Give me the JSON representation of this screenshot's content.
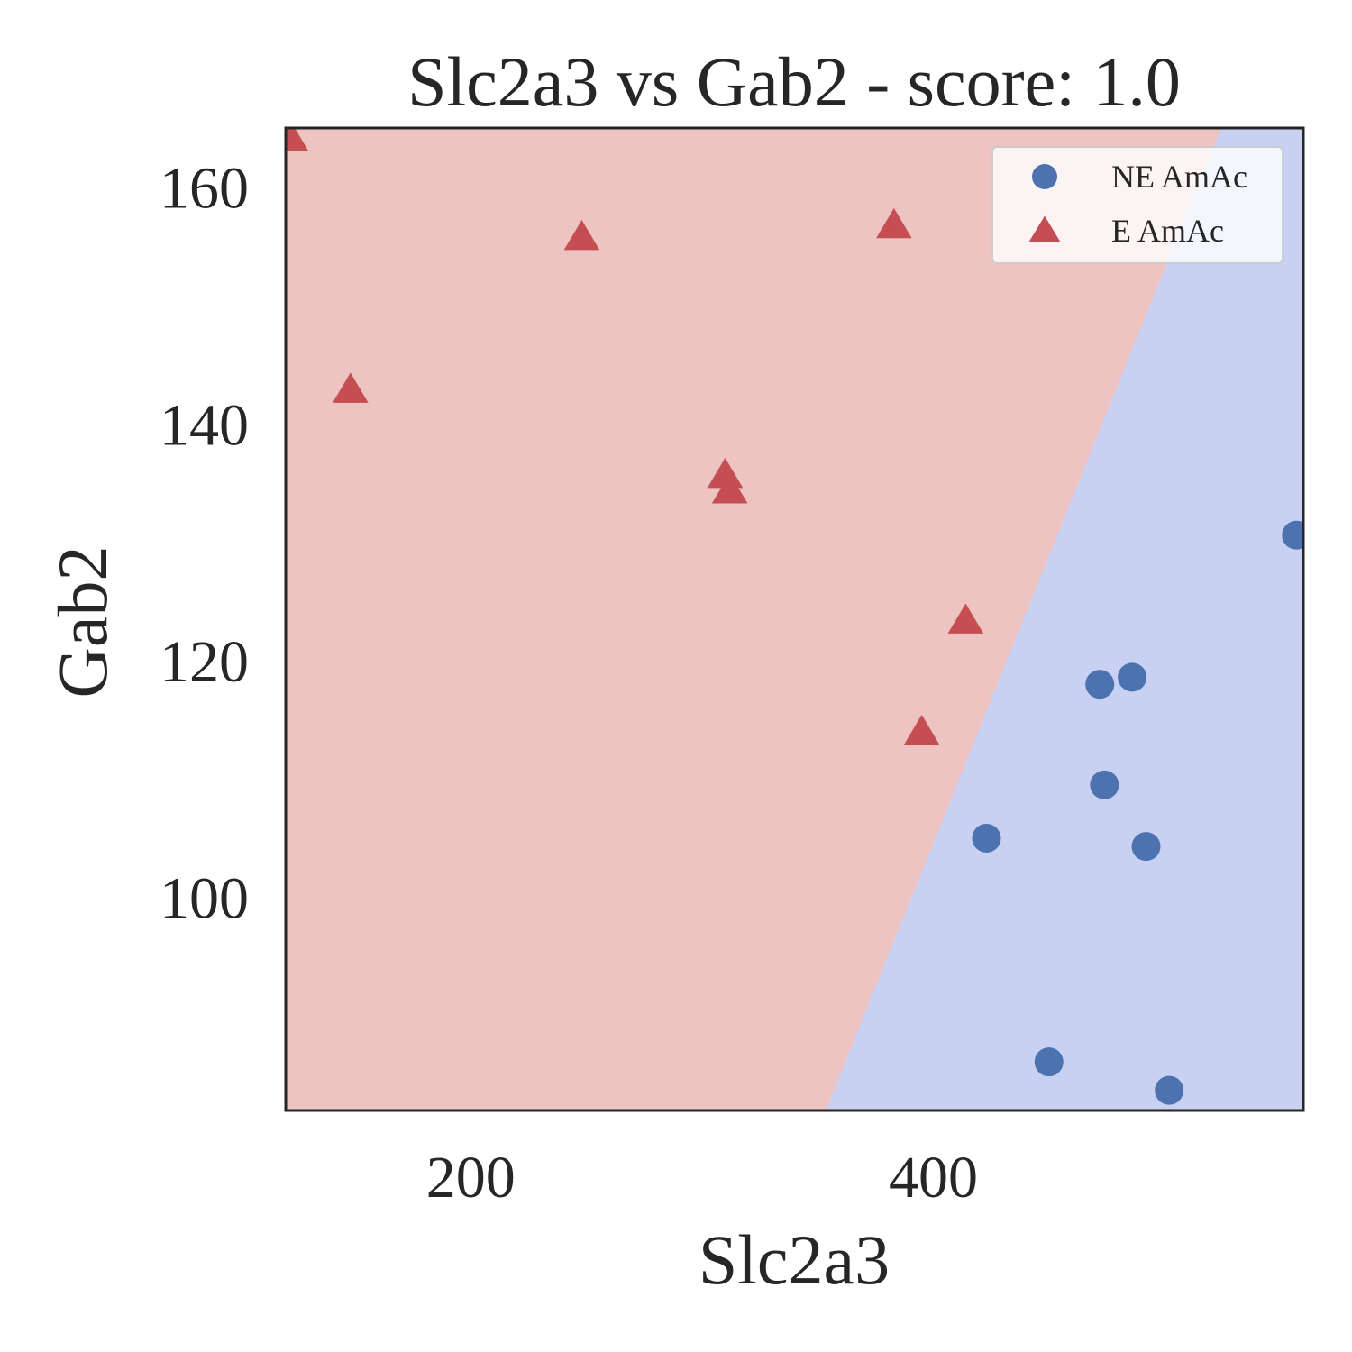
{
  "chart_data": {
    "type": "scatter",
    "title": "Slc2a3 vs Gab2 - score: 1.0",
    "xlabel": "Slc2a3",
    "ylabel": "Gab2",
    "xlim": [
      120,
      560
    ],
    "ylim": [
      82,
      165
    ],
    "xticks": [
      {
        "value": 200,
        "label": "200"
      },
      {
        "value": 400,
        "label": "400"
      }
    ],
    "yticks": [
      {
        "value": 100,
        "label": "100"
      },
      {
        "value": 120,
        "label": "120"
      },
      {
        "value": 140,
        "label": "140"
      },
      {
        "value": 160,
        "label": "160"
      }
    ],
    "grid": false,
    "legend_position": "top-right",
    "decision_boundary": {
      "points": [
        [
          353.5,
          82
        ],
        [
          524.5,
          165
        ]
      ],
      "left_region_color": "#eec4c3",
      "right_region_color": "#c8d1f2"
    },
    "series": [
      {
        "name": "NE AmAc",
        "marker": "circle",
        "color": "#4c72b0",
        "points": [
          {
            "x": 423,
            "y": 105.0
          },
          {
            "x": 450,
            "y": 86.1
          },
          {
            "x": 472,
            "y": 118.0
          },
          {
            "x": 474,
            "y": 109.5
          },
          {
            "x": 486,
            "y": 118.6
          },
          {
            "x": 492,
            "y": 104.3
          },
          {
            "x": 502,
            "y": 83.7
          },
          {
            "x": 557,
            "y": 130.6
          }
        ]
      },
      {
        "name": "E AmAc",
        "marker": "triangle",
        "color": "#c44e52",
        "points": [
          {
            "x": 122,
            "y": 164.2
          },
          {
            "x": 148,
            "y": 142.9
          },
          {
            "x": 248,
            "y": 155.8
          },
          {
            "x": 310,
            "y": 135.7
          },
          {
            "x": 312,
            "y": 134.4
          },
          {
            "x": 383,
            "y": 156.8
          },
          {
            "x": 395,
            "y": 114.0
          },
          {
            "x": 414,
            "y": 123.4
          }
        ]
      }
    ]
  }
}
